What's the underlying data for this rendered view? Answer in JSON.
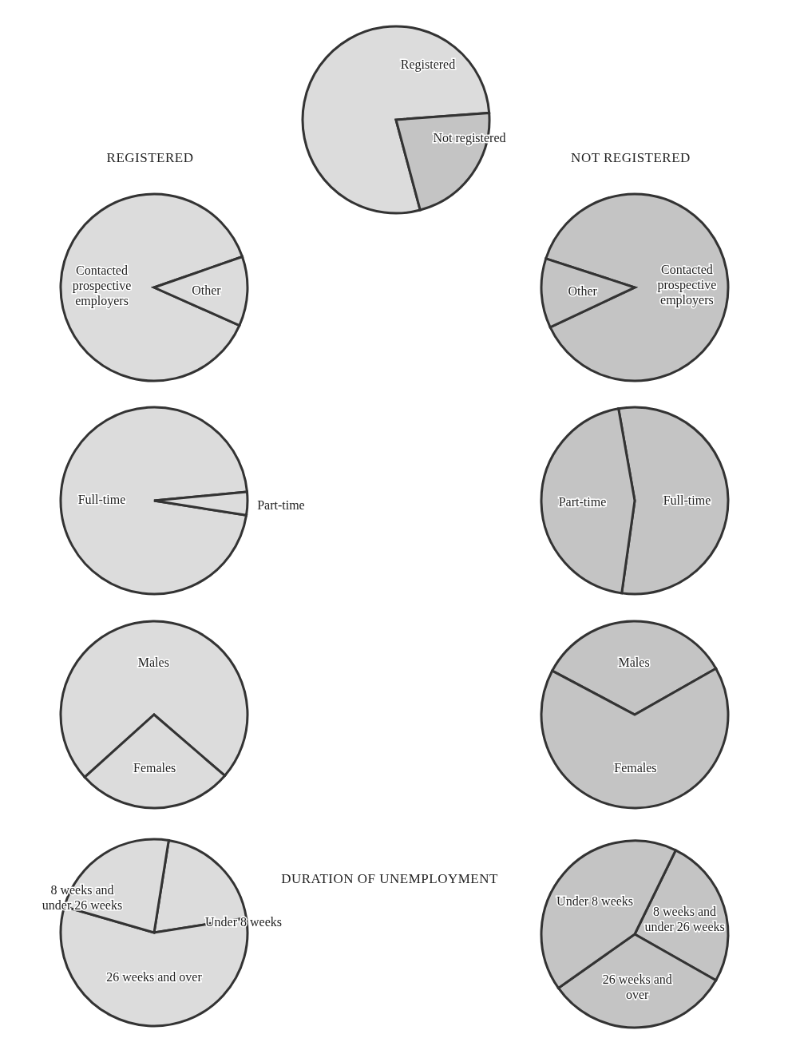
{
  "chart_data": [
    {
      "type": "pie",
      "categories": [
        "Registered",
        "Not registered"
      ],
      "values": [
        78,
        22
      ],
      "colors": [
        "#dcdcdc",
        "#c4c4c4"
      ]
    },
    {
      "type": "pie",
      "title": "REGISTERED",
      "categories": [
        "Contacted prospective employers",
        "Other"
      ],
      "values": [
        88,
        12
      ],
      "colors": [
        "#dcdcdc",
        "#dcdcdc"
      ]
    },
    {
      "type": "pie",
      "title": "NOT REGISTERED",
      "categories": [
        "Contacted prospective employers",
        "Other"
      ],
      "values": [
        88,
        12
      ],
      "colors": [
        "#c4c4c4",
        "#c4c4c4"
      ]
    },
    {
      "type": "pie",
      "categories": [
        "Full-time",
        "Part-time"
      ],
      "values": [
        96,
        4
      ],
      "colors": [
        "#dcdcdc",
        "#dcdcdc"
      ]
    },
    {
      "type": "pie",
      "categories": [
        "Full-time",
        "Part-time"
      ],
      "values": [
        55,
        45
      ],
      "colors": [
        "#c4c4c4",
        "#c4c4c4"
      ]
    },
    {
      "type": "pie",
      "categories": [
        "Males",
        "Females"
      ],
      "values": [
        73,
        27
      ],
      "colors": [
        "#dcdcdc",
        "#dcdcdc"
      ]
    },
    {
      "type": "pie",
      "categories": [
        "Males",
        "Females"
      ],
      "values": [
        34,
        66
      ],
      "colors": [
        "#c4c4c4",
        "#c4c4c4"
      ]
    },
    {
      "type": "pie",
      "title": "DURATION OF UNEMPLOYMENT",
      "categories": [
        "Under 8 weeks",
        "26 weeks and over",
        "8 weeks and under 26 weeks"
      ],
      "values": [
        20,
        57,
        23
      ],
      "colors": [
        "#dcdcdc",
        "#dcdcdc",
        "#dcdcdc"
      ]
    },
    {
      "type": "pie",
      "categories": [
        "8 weeks and under 26 weeks",
        "26 weeks and over",
        "Under 8 weeks"
      ],
      "values": [
        26,
        32,
        42
      ],
      "colors": [
        "#c4c4c4",
        "#c4c4c4",
        "#c4c4c4"
      ]
    }
  ]
}
